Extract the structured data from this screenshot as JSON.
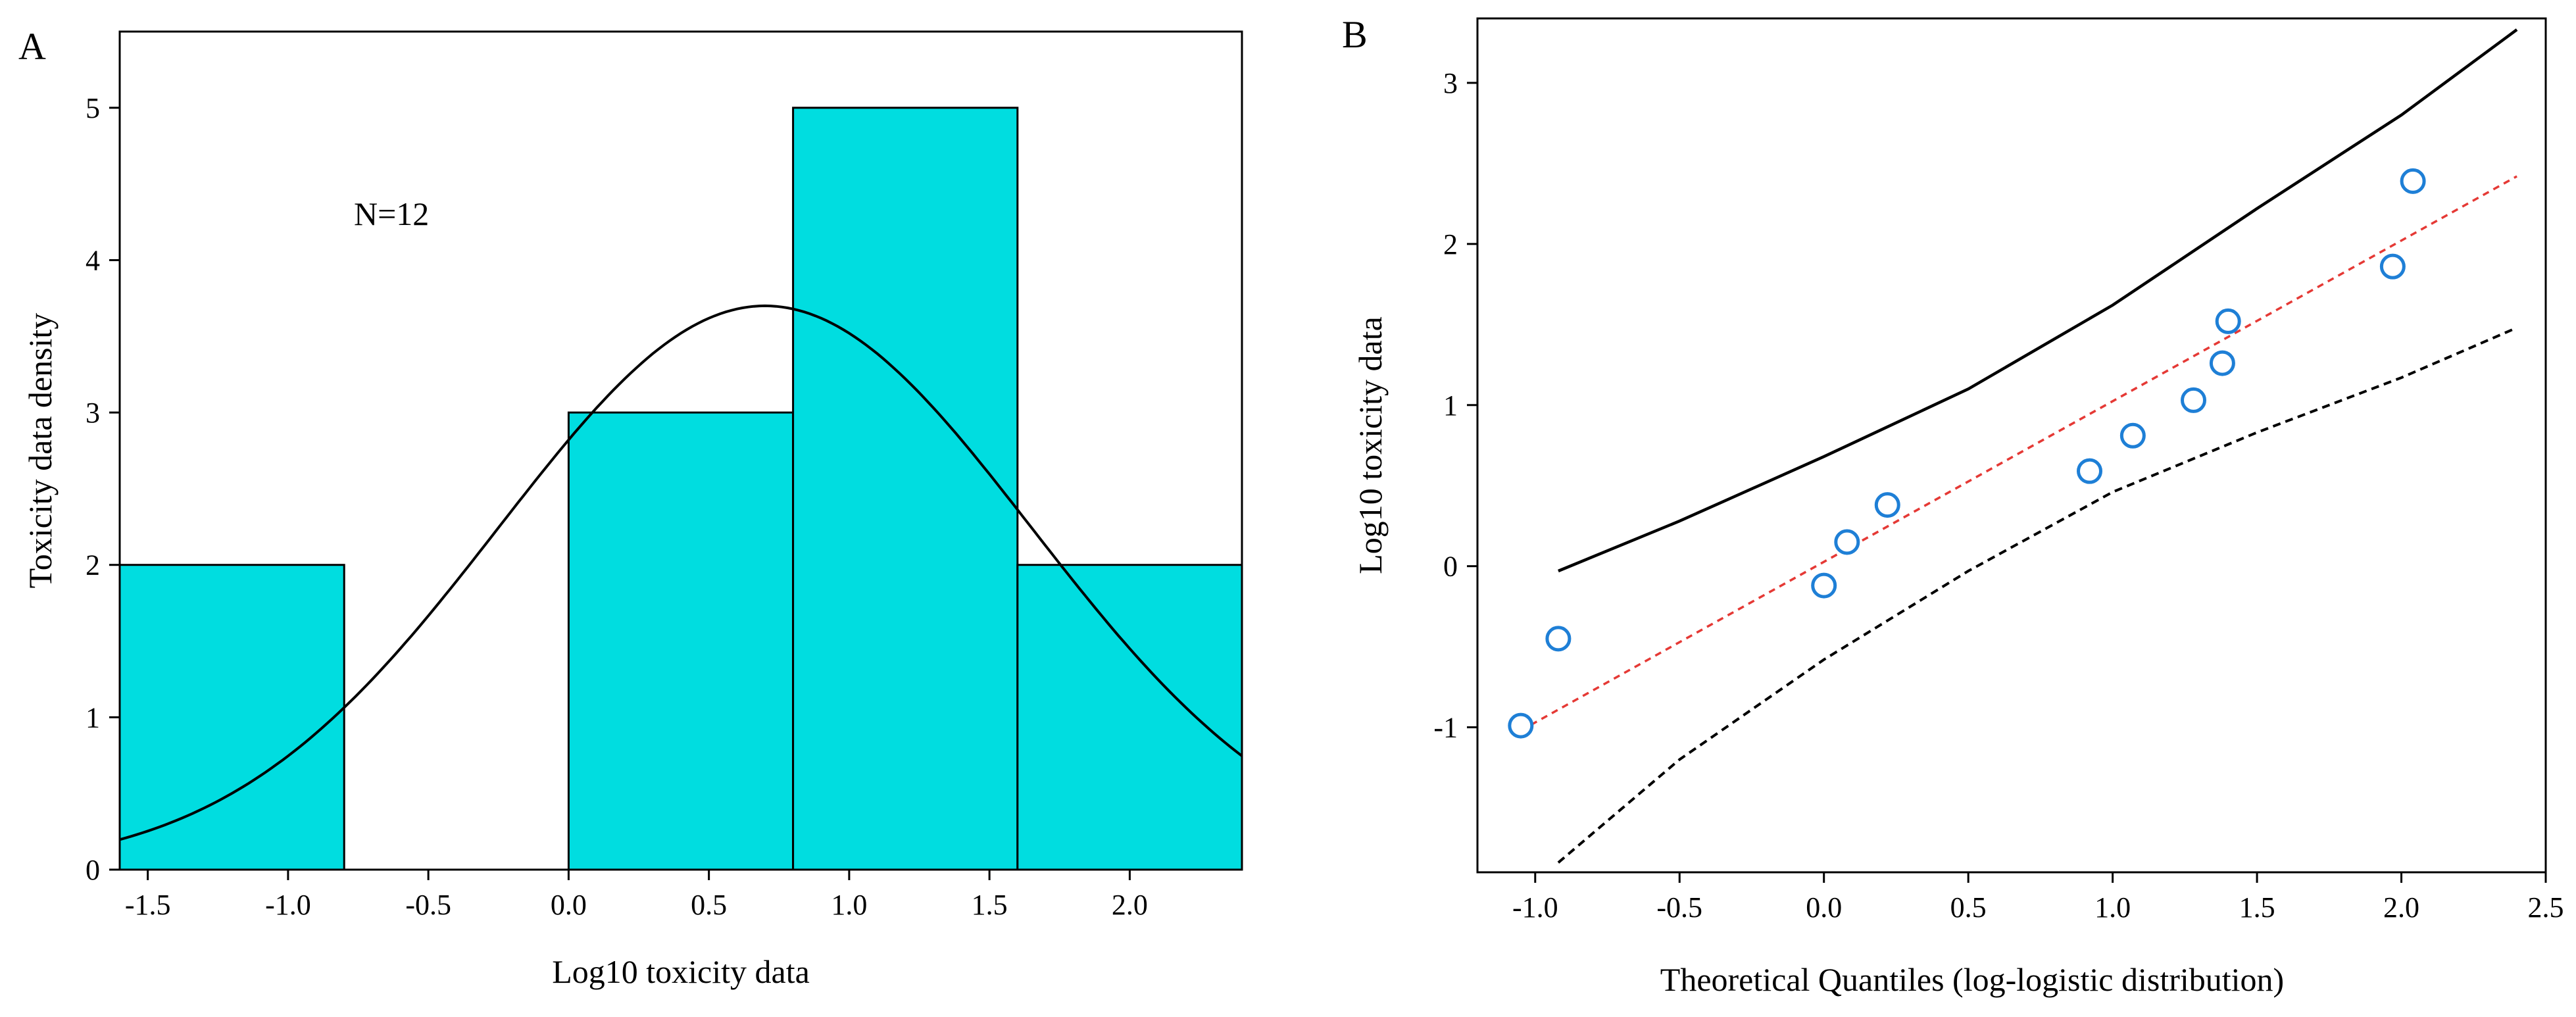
{
  "chart_data": [
    {
      "panel": "A",
      "type": "bar",
      "title": "",
      "xlabel": "Log10 toxicity data",
      "ylabel": "Toxicity data density",
      "xlim": [
        -1.6,
        2.4
      ],
      "ylim": [
        0,
        5.5
      ],
      "xticks": [
        -1.5,
        -1.0,
        -0.5,
        0.0,
        0.5,
        1.0,
        1.5,
        2.0
      ],
      "xtick_labels": [
        "-1.5",
        "-1.0",
        "-0.5",
        "0.0",
        "0.5",
        "1.0",
        "1.5",
        "2.0"
      ],
      "yticks": [
        0,
        1,
        2,
        3,
        4,
        5
      ],
      "ytick_labels": [
        "0",
        "1",
        "2",
        "3",
        "4",
        "5"
      ],
      "bins": [
        {
          "start": -1.6,
          "end": -0.8,
          "count": 2
        },
        {
          "start": -0.8,
          "end": 0.0,
          "count": 0
        },
        {
          "start": 0.0,
          "end": 0.8,
          "count": 3
        },
        {
          "start": 0.8,
          "end": 1.6,
          "count": 5
        },
        {
          "start": 1.6,
          "end": 2.4,
          "count": 2
        }
      ],
      "fit_curve": {
        "type": "normal",
        "peak_x": 0.7,
        "peak_y": 3.7,
        "sigma": 0.95
      },
      "annotation": "N=12",
      "bar_color": "#00dde0",
      "grid": false
    },
    {
      "panel": "B",
      "type": "scatter",
      "title": "",
      "xlabel": "Theoretical Quantiles (log-logistic distribution)",
      "ylabel": "Log10 toxicity data",
      "xlim": [
        -1.2,
        2.5
      ],
      "ylim": [
        -1.9,
        3.4
      ],
      "xticks": [
        -1.0,
        -0.5,
        0.0,
        0.5,
        1.0,
        1.5,
        2.0,
        2.5
      ],
      "xtick_labels": [
        "-1.0",
        "-0.5",
        "0.0",
        "0.5",
        "1.0",
        "1.5",
        "2.0",
        "2.5"
      ],
      "yticks": [
        -1,
        0,
        1,
        2,
        3
      ],
      "ytick_labels": [
        "-1",
        "0",
        "1",
        "2",
        "3"
      ],
      "points": {
        "x": [
          -1.05,
          -0.92,
          0.0,
          0.08,
          0.22,
          0.92,
          1.07,
          1.28,
          1.38,
          1.4,
          1.97,
          2.04
        ],
        "y": [
          -0.99,
          -0.45,
          -0.12,
          0.15,
          0.38,
          0.59,
          0.81,
          1.03,
          1.26,
          1.52,
          1.86,
          2.39
        ],
        "color": "#1e7fd6"
      },
      "reference_line": {
        "x": [
          -1.05,
          2.4
        ],
        "y": [
          -1.02,
          2.42
        ],
        "color": "#e53935",
        "style": "dashed"
      },
      "upper_band": {
        "x": [
          -0.92,
          -0.5,
          0.0,
          0.5,
          1.0,
          1.5,
          2.0,
          2.4
        ],
        "y": [
          -0.03,
          0.28,
          0.68,
          1.1,
          1.62,
          2.22,
          2.8,
          3.33
        ],
        "color": "#000000",
        "style": "solid"
      },
      "lower_band": {
        "x": [
          -0.92,
          -0.5,
          0.0,
          0.5,
          1.0,
          1.5,
          2.0,
          2.4
        ],
        "y": [
          -1.84,
          -1.2,
          -0.58,
          -0.03,
          0.46,
          0.83,
          1.17,
          1.48
        ],
        "color": "#000000",
        "style": "dashed"
      },
      "grid": false
    }
  ]
}
